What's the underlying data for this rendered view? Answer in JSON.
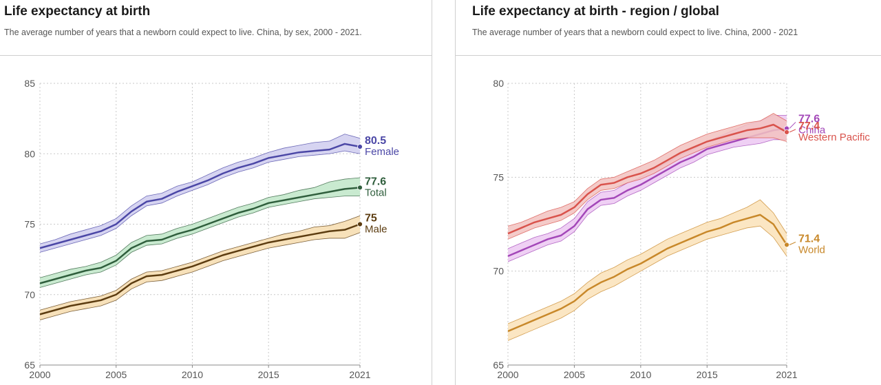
{
  "chart_data": [
    {
      "id": "sex",
      "type": "line",
      "title": "Life expectancy at birth",
      "subtitle": "The average number of years that a newborn could expect to live. China, by sex, 2000 - 2021.",
      "xlabel": "",
      "ylabel": "",
      "xlim": [
        2000,
        2021
      ],
      "ylim": [
        65,
        85
      ],
      "x_ticks": [
        2000,
        2005,
        2010,
        2015,
        2021
      ],
      "y_ticks": [
        65,
        70,
        75,
        80,
        85
      ],
      "grid": true,
      "x": [
        2000,
        2001,
        2002,
        2003,
        2004,
        2005,
        2006,
        2007,
        2008,
        2009,
        2010,
        2011,
        2012,
        2013,
        2014,
        2015,
        2016,
        2017,
        2018,
        2019,
        2020,
        2021
      ],
      "series": [
        {
          "name": "Female",
          "color": "#4b47a6",
          "band_color": "#cfcdee",
          "end_label": "80.5",
          "values": [
            73.3,
            73.6,
            73.9,
            74.2,
            74.5,
            75.0,
            75.9,
            76.6,
            76.8,
            77.3,
            77.7,
            78.1,
            78.6,
            79.0,
            79.3,
            79.7,
            79.9,
            80.1,
            80.2,
            80.3,
            80.7,
            80.5
          ],
          "lower": [
            73.0,
            73.3,
            73.6,
            73.9,
            74.2,
            74.7,
            75.6,
            76.3,
            76.5,
            77.0,
            77.4,
            77.8,
            78.3,
            78.7,
            79.0,
            79.4,
            79.6,
            79.8,
            79.9,
            80.0,
            80.2,
            80.0
          ],
          "upper": [
            73.6,
            73.9,
            74.3,
            74.6,
            74.9,
            75.4,
            76.3,
            77.0,
            77.2,
            77.7,
            78.0,
            78.5,
            79.0,
            79.4,
            79.7,
            80.1,
            80.4,
            80.6,
            80.8,
            80.9,
            81.4,
            81.1
          ]
        },
        {
          "name": "Total",
          "color": "#2f5e3c",
          "band_color": "#bfe6c8",
          "end_label": "77.6",
          "values": [
            70.8,
            71.1,
            71.4,
            71.7,
            71.9,
            72.4,
            73.3,
            73.8,
            73.9,
            74.3,
            74.6,
            75.0,
            75.4,
            75.8,
            76.1,
            76.5,
            76.7,
            76.9,
            77.1,
            77.3,
            77.5,
            77.6
          ],
          "lower": [
            70.5,
            70.8,
            71.1,
            71.4,
            71.6,
            72.1,
            73.0,
            73.5,
            73.6,
            74.0,
            74.3,
            74.7,
            75.1,
            75.5,
            75.8,
            76.2,
            76.4,
            76.6,
            76.8,
            76.9,
            77.0,
            77.0
          ],
          "upper": [
            71.2,
            71.5,
            71.8,
            72.0,
            72.3,
            72.8,
            73.7,
            74.2,
            74.3,
            74.7,
            75.0,
            75.4,
            75.8,
            76.2,
            76.5,
            76.9,
            77.1,
            77.4,
            77.6,
            78.0,
            78.2,
            78.3
          ]
        },
        {
          "name": "Male",
          "color": "#5c3c10",
          "band_color": "#f6dcae",
          "end_label": "75",
          "values": [
            68.6,
            68.9,
            69.2,
            69.4,
            69.6,
            70.0,
            70.8,
            71.3,
            71.4,
            71.7,
            72.0,
            72.4,
            72.8,
            73.1,
            73.4,
            73.7,
            73.9,
            74.1,
            74.3,
            74.5,
            74.6,
            75.0
          ],
          "lower": [
            68.2,
            68.5,
            68.8,
            69.0,
            69.2,
            69.6,
            70.4,
            70.9,
            71.0,
            71.3,
            71.6,
            72.0,
            72.4,
            72.7,
            73.0,
            73.3,
            73.5,
            73.7,
            73.9,
            74.0,
            74.0,
            74.4
          ],
          "upper": [
            68.9,
            69.2,
            69.5,
            69.7,
            69.9,
            70.3,
            71.1,
            71.6,
            71.7,
            72.0,
            72.3,
            72.7,
            73.1,
            73.4,
            73.7,
            74.0,
            74.3,
            74.5,
            74.8,
            74.9,
            75.2,
            75.6
          ]
        }
      ]
    },
    {
      "id": "region",
      "type": "line",
      "title": "Life expectancy at birth - region / global",
      "subtitle": "The average number of years that a newborn could expect to live. China, 2000 - 2021",
      "xlabel": "",
      "ylabel": "",
      "xlim": [
        2000,
        2021
      ],
      "ylim": [
        65,
        80
      ],
      "x_ticks": [
        2000,
        2005,
        2010,
        2015,
        2021
      ],
      "y_ticks": [
        65,
        70,
        75,
        80
      ],
      "grid": true,
      "x": [
        2000,
        2001,
        2002,
        2003,
        2004,
        2005,
        2006,
        2007,
        2008,
        2009,
        2010,
        2011,
        2012,
        2013,
        2014,
        2015,
        2016,
        2017,
        2018,
        2019,
        2020,
        2021
      ],
      "series": [
        {
          "name": "China",
          "color": "#a347b8",
          "band_color": "#ecc8f2",
          "end_label": "77.6",
          "values": [
            70.8,
            71.1,
            71.4,
            71.7,
            71.9,
            72.4,
            73.3,
            73.8,
            73.9,
            74.3,
            74.6,
            75.0,
            75.4,
            75.8,
            76.1,
            76.5,
            76.7,
            76.9,
            77.1,
            77.3,
            77.5,
            77.6
          ],
          "lower": [
            70.5,
            70.8,
            71.1,
            71.4,
            71.6,
            72.1,
            73.0,
            73.5,
            73.6,
            74.0,
            74.3,
            74.7,
            75.1,
            75.5,
            75.8,
            76.2,
            76.4,
            76.6,
            76.7,
            76.8,
            77.0,
            77.0
          ],
          "upper": [
            71.2,
            71.5,
            71.8,
            72.0,
            72.3,
            72.8,
            73.7,
            74.2,
            74.3,
            74.7,
            75.0,
            75.4,
            75.8,
            76.2,
            76.5,
            76.9,
            77.2,
            77.5,
            77.8,
            78.0,
            78.3,
            78.3
          ]
        },
        {
          "name": "Western Pacific",
          "color": "#d9534c",
          "band_color": "#f2c2c0",
          "end_label": "77.4",
          "values": [
            72.0,
            72.3,
            72.6,
            72.8,
            73.0,
            73.4,
            74.1,
            74.6,
            74.7,
            75.0,
            75.2,
            75.5,
            75.9,
            76.3,
            76.6,
            76.9,
            77.1,
            77.3,
            77.5,
            77.6,
            77.8,
            77.4
          ],
          "lower": [
            71.7,
            72.0,
            72.3,
            72.5,
            72.7,
            73.1,
            73.8,
            74.3,
            74.4,
            74.7,
            74.9,
            75.2,
            75.6,
            76.0,
            76.3,
            76.6,
            76.8,
            77.0,
            77.1,
            77.1,
            77.1,
            76.9
          ],
          "upper": [
            72.4,
            72.6,
            72.9,
            73.2,
            73.4,
            73.7,
            74.4,
            74.9,
            75.0,
            75.3,
            75.6,
            75.9,
            76.3,
            76.7,
            77.0,
            77.3,
            77.5,
            77.7,
            77.9,
            78.0,
            78.4,
            78.0
          ]
        },
        {
          "name": "World",
          "color": "#c8882a",
          "band_color": "#fae2b8",
          "end_label": "71.4",
          "values": [
            66.8,
            67.1,
            67.4,
            67.7,
            68.0,
            68.4,
            69.0,
            69.4,
            69.7,
            70.1,
            70.4,
            70.8,
            71.2,
            71.5,
            71.8,
            72.1,
            72.3,
            72.6,
            72.8,
            73.0,
            72.5,
            71.4
          ],
          "lower": [
            66.3,
            66.6,
            66.9,
            67.2,
            67.5,
            67.9,
            68.5,
            68.9,
            69.2,
            69.6,
            70.0,
            70.4,
            70.8,
            71.1,
            71.4,
            71.7,
            71.9,
            72.1,
            72.3,
            72.4,
            71.8,
            70.8
          ],
          "upper": [
            67.2,
            67.5,
            67.8,
            68.1,
            68.4,
            68.8,
            69.4,
            69.9,
            70.2,
            70.6,
            70.9,
            71.3,
            71.7,
            72.0,
            72.3,
            72.6,
            72.8,
            73.1,
            73.4,
            73.8,
            73.1,
            72.0
          ]
        }
      ]
    }
  ]
}
